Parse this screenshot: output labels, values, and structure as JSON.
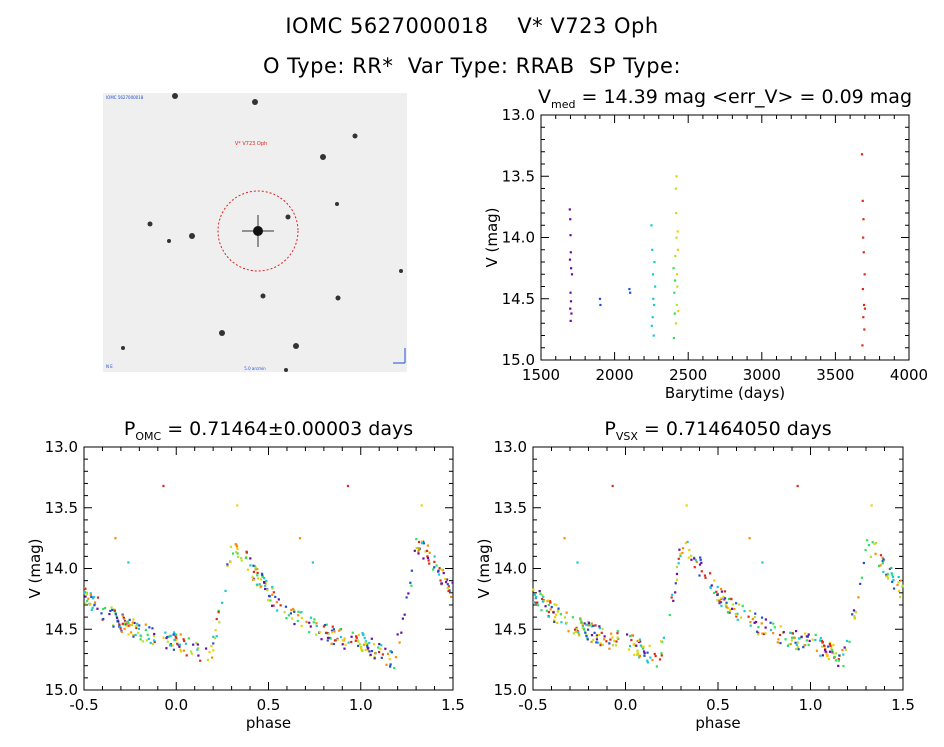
{
  "header": {
    "object_line": "IOMC 5627000018    V* V723 Oph",
    "type_line": "O Type: RR*  Var Type: RRAB  SP Type:"
  },
  "finder_chart": {
    "target_label": "V* V723 Oph",
    "corner_top_left": "IOMC 5627000018",
    "corner_bottom_left": "N E",
    "bottom_center": "5.0 arcmin",
    "circle_color": "#dd2222"
  },
  "colors": [
    "#6a0da5",
    "#1f4fd6",
    "#17c8d8",
    "#2ee05a",
    "#b7e22a",
    "#f0d000",
    "#ff8a00",
    "#e02a10"
  ],
  "chart_data": [
    {
      "id": "lightcurve",
      "type": "scatter",
      "title_main": "V",
      "title_sub": "med",
      "title_rest": " = 14.39 mag <err_V> = 0.09 mag",
      "xlabel": "Barytime (days)",
      "ylabel": "V (mag)",
      "xlim": [
        1500,
        4000
      ],
      "ylim": [
        15.0,
        13.0
      ],
      "xticks": [
        "1500",
        "2000",
        "2500",
        "3000",
        "3500",
        "4000"
      ],
      "yticks": [
        "13.0",
        "13.5",
        "14.0",
        "14.5",
        "15.0"
      ],
      "series": [
        {
          "color_index": 0,
          "points": [
            [
              1695,
              13.77
            ],
            [
              1698,
              13.85
            ],
            [
              1700,
              13.98
            ],
            [
              1702,
              14.12
            ],
            [
              1704,
              14.25
            ],
            [
              1700,
              14.45
            ],
            [
              1703,
              14.52
            ],
            [
              1698,
              14.58
            ],
            [
              1706,
              14.62
            ],
            [
              1710,
              14.3
            ],
            [
              1696,
              14.18
            ],
            [
              1701,
              14.68
            ]
          ]
        },
        {
          "color_index": 1,
          "points": [
            [
              1900,
              14.5
            ],
            [
              1903,
              14.55
            ],
            [
              2100,
              14.42
            ],
            [
              2105,
              14.45
            ]
          ]
        },
        {
          "color_index": 2,
          "points": [
            [
              2250,
              13.9
            ],
            [
              2255,
              14.1
            ],
            [
              2260,
              14.3
            ],
            [
              2262,
              14.5
            ],
            [
              2258,
              14.65
            ],
            [
              2265,
              14.8
            ],
            [
              2270,
              14.2
            ],
            [
              2268,
              14.55
            ],
            [
              2252,
              14.72
            ],
            [
              2275,
              14.4
            ]
          ]
        },
        {
          "color_index": 3,
          "points": [
            [
              2400,
              14.25
            ],
            [
              2405,
              14.45
            ],
            [
              2408,
              14.62
            ],
            [
              2402,
              14.82
            ],
            [
              2410,
              14.35
            ]
          ]
        },
        {
          "color_index": 4,
          "points": [
            [
              2415,
              13.6
            ],
            [
              2418,
              13.8
            ],
            [
              2420,
              14.0
            ],
            [
              2412,
              14.15
            ],
            [
              2425,
              14.4
            ],
            [
              2422,
              14.55
            ],
            [
              2416,
              14.7
            ]
          ]
        },
        {
          "color_index": 5,
          "points": [
            [
              2420,
              13.5
            ],
            [
              2428,
              13.95
            ],
            [
              2430,
              14.1
            ],
            [
              2424,
              14.3
            ],
            [
              2432,
              14.6
            ]
          ]
        },
        {
          "color_index": 7,
          "points": [
            [
              3680,
              13.32
            ],
            [
              3685,
              13.7
            ],
            [
              3690,
              13.85
            ],
            [
              3688,
              14.0
            ],
            [
              3692,
              14.12
            ],
            [
              3686,
              14.42
            ],
            [
              3694,
              14.55
            ],
            [
              3689,
              14.65
            ],
            [
              3696,
              14.75
            ],
            [
              3683,
              14.88
            ],
            [
              3698,
              14.3
            ],
            [
              3700,
              14.58
            ]
          ]
        }
      ]
    },
    {
      "id": "phase_omc",
      "type": "scatter",
      "title_main": "P",
      "title_sub": "OMC",
      "title_rest": " = 0.71464±0.00003 days",
      "xlabel": "phase",
      "ylabel": "V (mag)",
      "xlim": [
        -0.5,
        1.5
      ],
      "ylim": [
        15.0,
        13.0
      ],
      "xticks": [
        "-0.5",
        "0.0",
        "0.5",
        "1.0",
        "1.5"
      ],
      "yticks": [
        "13.0",
        "13.5",
        "14.0",
        "14.5",
        "15.0"
      ],
      "curve": [
        [
          -0.5,
          14.2
        ],
        [
          -0.4,
          14.35
        ],
        [
          -0.3,
          14.45
        ],
        [
          -0.2,
          14.52
        ],
        [
          -0.1,
          14.58
        ],
        [
          0.0,
          14.6
        ],
        [
          0.1,
          14.68
        ],
        [
          0.18,
          14.75
        ],
        [
          0.26,
          14.2
        ],
        [
          0.3,
          13.82
        ],
        [
          0.35,
          13.85
        ],
        [
          0.4,
          13.98
        ],
        [
          0.5,
          14.2
        ],
        [
          0.6,
          14.35
        ],
        [
          0.7,
          14.45
        ],
        [
          0.8,
          14.52
        ],
        [
          0.9,
          14.58
        ],
        [
          1.0,
          14.6
        ],
        [
          1.1,
          14.68
        ],
        [
          1.18,
          14.75
        ],
        [
          1.26,
          14.2
        ],
        [
          1.3,
          13.82
        ],
        [
          1.35,
          13.85
        ],
        [
          1.4,
          13.98
        ],
        [
          1.5,
          14.2
        ]
      ],
      "outliers": [
        [
          -0.07,
          13.32,
          7
        ],
        [
          0.93,
          13.32,
          7
        ],
        [
          0.33,
          13.48,
          5
        ],
        [
          1.33,
          13.48,
          5
        ],
        [
          -0.33,
          13.75,
          6
        ],
        [
          0.67,
          13.75,
          6
        ],
        [
          -0.26,
          13.95,
          2
        ],
        [
          0.74,
          13.95,
          2
        ]
      ]
    },
    {
      "id": "phase_vsx",
      "type": "scatter",
      "title_main": "P",
      "title_sub": "VSX",
      "title_rest": " = 0.71464050 days",
      "xlabel": "phase",
      "ylabel": "V (mag)",
      "xlim": [
        -0.5,
        1.5
      ],
      "ylim": [
        15.0,
        13.0
      ],
      "xticks": [
        "-0.5",
        "0.0",
        "0.5",
        "1.0",
        "1.5"
      ],
      "yticks": [
        "13.0",
        "13.5",
        "14.0",
        "14.5",
        "15.0"
      ],
      "curve": [
        [
          -0.5,
          14.2
        ],
        [
          -0.4,
          14.35
        ],
        [
          -0.3,
          14.45
        ],
        [
          -0.2,
          14.52
        ],
        [
          -0.1,
          14.58
        ],
        [
          0.0,
          14.6
        ],
        [
          0.1,
          14.68
        ],
        [
          0.18,
          14.75
        ],
        [
          0.26,
          14.2
        ],
        [
          0.3,
          13.82
        ],
        [
          0.35,
          13.85
        ],
        [
          0.4,
          13.98
        ],
        [
          0.5,
          14.2
        ],
        [
          0.6,
          14.35
        ],
        [
          0.7,
          14.45
        ],
        [
          0.8,
          14.52
        ],
        [
          0.9,
          14.58
        ],
        [
          1.0,
          14.6
        ],
        [
          1.1,
          14.68
        ],
        [
          1.18,
          14.75
        ],
        [
          1.26,
          14.2
        ],
        [
          1.3,
          13.82
        ],
        [
          1.35,
          13.85
        ],
        [
          1.4,
          13.98
        ],
        [
          1.5,
          14.2
        ]
      ],
      "outliers": [
        [
          -0.07,
          13.32,
          7
        ],
        [
          0.93,
          13.32,
          7
        ],
        [
          0.33,
          13.48,
          5
        ],
        [
          1.33,
          13.48,
          5
        ],
        [
          -0.33,
          13.75,
          6
        ],
        [
          0.67,
          13.75,
          6
        ],
        [
          -0.26,
          13.95,
          2
        ],
        [
          0.74,
          13.95,
          2
        ]
      ]
    }
  ]
}
